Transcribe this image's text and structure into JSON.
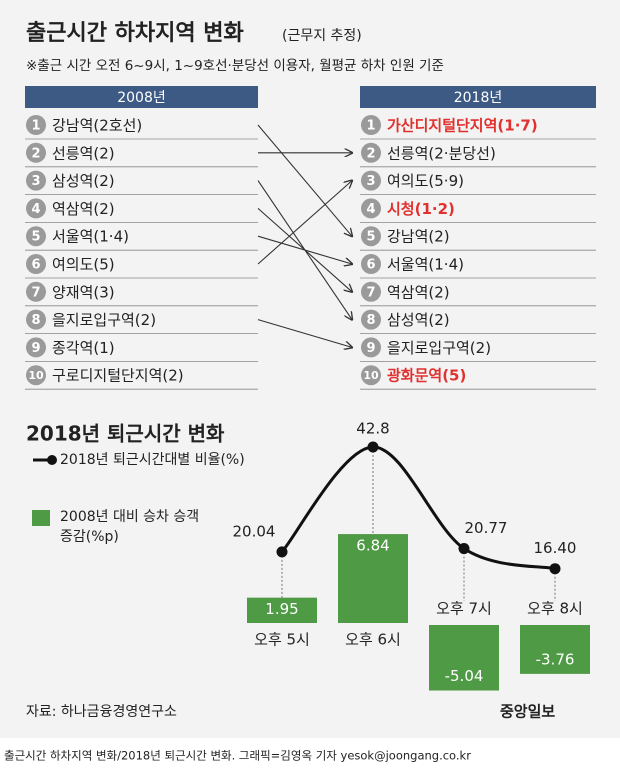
{
  "header": {
    "title": "출근시간 하차지역 변화",
    "title_note": "(근무지 추정)",
    "subtitle": "※출근 시간 오전 6~9시, 1~9호선·분당선 이용자, 월평균 하차 인원 기준"
  },
  "ranking": {
    "header_color": "#3d5a85",
    "highlight_color": "#e0312f",
    "left": {
      "label": "2008년",
      "items": [
        {
          "rank": "1",
          "name": "강남역(2호선)"
        },
        {
          "rank": "2",
          "name": "선릉역(2)"
        },
        {
          "rank": "3",
          "name": "삼성역(2)"
        },
        {
          "rank": "4",
          "name": "역삼역(2)"
        },
        {
          "rank": "5",
          "name": "서울역(1·4)"
        },
        {
          "rank": "6",
          "name": "여의도(5)"
        },
        {
          "rank": "7",
          "name": "양재역(3)"
        },
        {
          "rank": "8",
          "name": "을지로입구역(2)"
        },
        {
          "rank": "9",
          "name": "종각역(1)"
        },
        {
          "rank": "10",
          "name": "구로디지털단지역(2)"
        }
      ]
    },
    "right": {
      "label": "2018년",
      "items": [
        {
          "rank": "1",
          "name": "가산디지털단지역(1·7)",
          "highlight": true
        },
        {
          "rank": "2",
          "name": "선릉역(2·분당선)"
        },
        {
          "rank": "3",
          "name": "여의도(5·9)"
        },
        {
          "rank": "4",
          "name": "시청(1·2)",
          "highlight": true
        },
        {
          "rank": "5",
          "name": "강남역(2)"
        },
        {
          "rank": "6",
          "name": "서울역(1·4)"
        },
        {
          "rank": "7",
          "name": "역삼역(2)"
        },
        {
          "rank": "8",
          "name": "삼성역(2)"
        },
        {
          "rank": "9",
          "name": "을지로입구역(2)"
        },
        {
          "rank": "10",
          "name": "광화문역(5)",
          "highlight": true
        }
      ]
    },
    "links": [
      {
        "from": 1,
        "to": 5
      },
      {
        "from": 2,
        "to": 2
      },
      {
        "from": 3,
        "to": 8
      },
      {
        "from": 4,
        "to": 7
      },
      {
        "from": 5,
        "to": 6
      },
      {
        "from": 6,
        "to": 3
      },
      {
        "from": 8,
        "to": 9
      }
    ]
  },
  "chart_data": {
    "type": "combo",
    "title": "2018년 퇴근시간 변화",
    "categories": [
      "오후 5시",
      "오후 6시",
      "오후 7시",
      "오후 8시"
    ],
    "series": [
      {
        "name": "2018년 퇴근시간대별 비율(%)",
        "type": "line",
        "color": "#111111",
        "values": [
          20.04,
          42.8,
          20.77,
          16.4
        ],
        "value_labels": [
          "20.04",
          "42.8",
          "20.77",
          "16.40"
        ]
      },
      {
        "name": "2008년 대비 승차 승객 증감(%p)",
        "type": "bar",
        "color": "#4f9a45",
        "values": [
          1.95,
          6.84,
          -5.04,
          -3.76
        ]
      }
    ]
  },
  "source": "자료: 하나금융경영연구소",
  "logo": "중앙일보",
  "caption": "출근시간 하차지역 변화/2018년 퇴근시간 변화. 그래픽=김영옥 기자 yesok@joongang.co.kr"
}
